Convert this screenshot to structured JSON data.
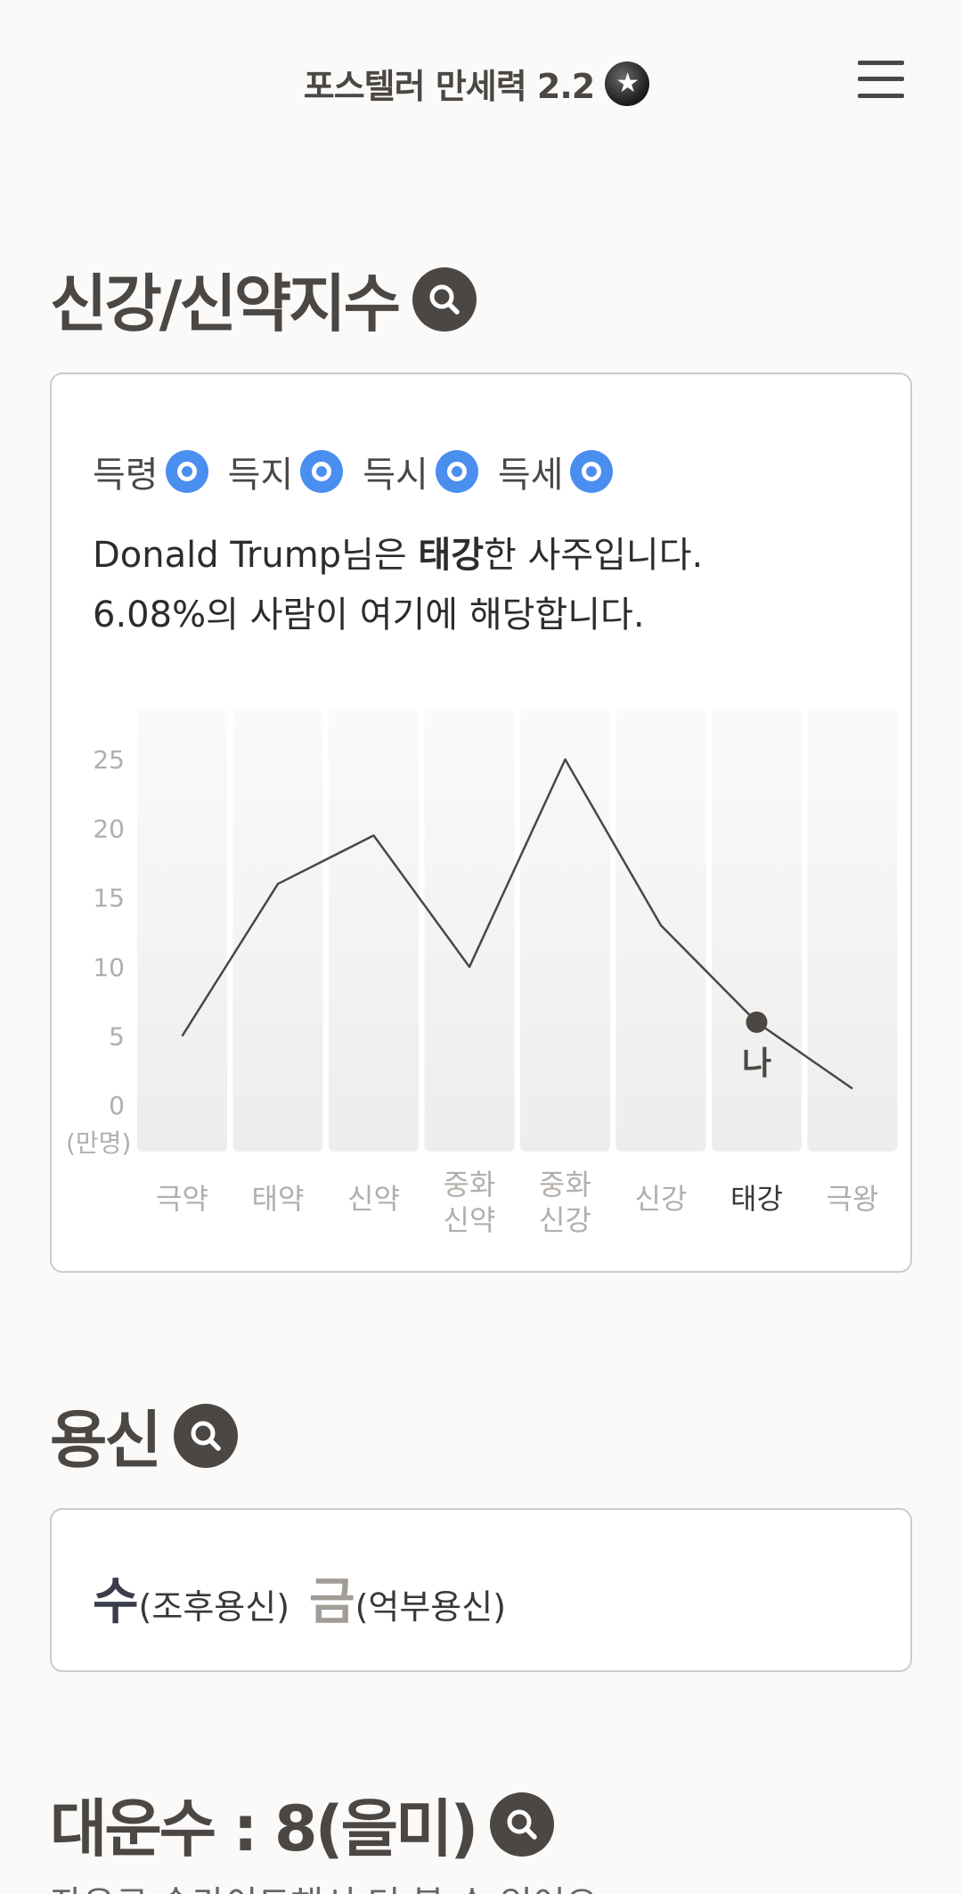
{
  "header": {
    "title": "포스텔러 만세력 2.2",
    "logo_icon": "star-moon-icon",
    "menu_icon": "hamburger-menu-icon"
  },
  "strength_section": {
    "title": "신강/신약지수",
    "badges": [
      {
        "label": "득령",
        "icon": "circle-o-icon",
        "color": "#4a8ef0"
      },
      {
        "label": "득지",
        "icon": "circle-o-icon",
        "color": "#4a8ef0"
      },
      {
        "label": "득시",
        "icon": "circle-o-icon",
        "color": "#4a8ef0"
      },
      {
        "label": "득세",
        "icon": "circle-o-icon",
        "color": "#4a8ef0"
      }
    ],
    "summary": {
      "line1_prefix": "Donald Trump님은 ",
      "line1_bold": "태강",
      "line1_suffix": "한 사주입니다.",
      "line2": "6.08%의 사람이 여기에 해당합니다."
    }
  },
  "chart_data": {
    "type": "line",
    "categories": [
      "극약",
      "태약",
      "신약",
      "중화\n신약",
      "중화\n신강",
      "신강",
      "태강",
      "극왕"
    ],
    "values": [
      5,
      16,
      19.5,
      10,
      25,
      13,
      6,
      1.2
    ],
    "ylabel": "(만명)",
    "yticks": [
      0,
      5,
      10,
      15,
      20,
      25
    ],
    "ylim": [
      0,
      26
    ],
    "highlight_index": 6,
    "highlight_label": "나",
    "grid": false
  },
  "yongsin_section": {
    "title": "용신",
    "items": [
      {
        "main": "수",
        "sub": "(조후용신)"
      },
      {
        "main": "금",
        "sub": "(억부용신)"
      }
    ]
  },
  "daeun_section": {
    "title": "대운수 : 8(을미)",
    "hint": "좌우로 슬라이드해서 더 볼 수 있어요"
  },
  "colors": {
    "background": "#fbfaf9",
    "primary_text": "#4a4744",
    "accent_blue": "#4a8ef0",
    "line": "#4a4744",
    "column": "#eeedeb"
  }
}
